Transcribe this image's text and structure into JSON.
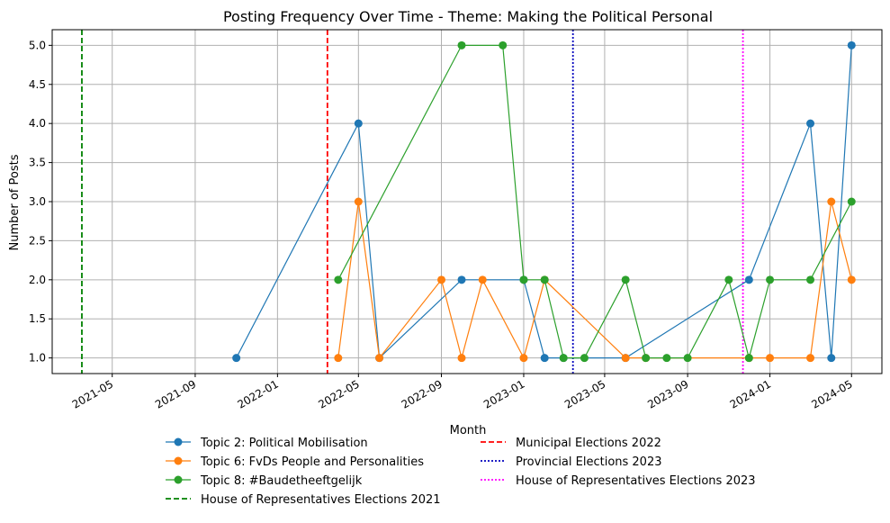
{
  "chart_data": {
    "type": "line",
    "title": "Posting Frequency Over Time - Theme: Making the Political Personal",
    "xlabel": "Month",
    "ylabel": "Number of Posts",
    "xlim": [
      "2021-02-01",
      "2024-06-15"
    ],
    "ylim": [
      0.8,
      5.2
    ],
    "grid": true,
    "legend_position": "bottom-center",
    "xticks": [
      {
        "date": "2021-05-01",
        "label": "2021-05"
      },
      {
        "date": "2021-09-01",
        "label": "2021-09"
      },
      {
        "date": "2022-01-01",
        "label": "2022-01"
      },
      {
        "date": "2022-05-01",
        "label": "2022-05"
      },
      {
        "date": "2022-09-01",
        "label": "2022-09"
      },
      {
        "date": "2023-01-01",
        "label": "2023-01"
      },
      {
        "date": "2023-05-01",
        "label": "2023-05"
      },
      {
        "date": "2023-09-01",
        "label": "2023-09"
      },
      {
        "date": "2024-01-01",
        "label": "2024-01"
      },
      {
        "date": "2024-05-01",
        "label": "2024-05"
      }
    ],
    "yticks": [
      {
        "value": 1.0,
        "label": "1.0"
      },
      {
        "value": 1.5,
        "label": "1.5"
      },
      {
        "value": 2.0,
        "label": "2.0"
      },
      {
        "value": 2.5,
        "label": "2.5"
      },
      {
        "value": 3.0,
        "label": "3.0"
      },
      {
        "value": 3.5,
        "label": "3.5"
      },
      {
        "value": 4.0,
        "label": "4.0"
      },
      {
        "value": 4.5,
        "label": "4.5"
      },
      {
        "value": 5.0,
        "label": "5.0"
      }
    ],
    "series": [
      {
        "name": "Topic 2: Political Mobilisation",
        "color": "#1f77b4",
        "points": [
          {
            "x": "2021-11-01",
            "y": 1
          },
          {
            "x": "2022-05-01",
            "y": 4
          },
          {
            "x": "2022-06-01",
            "y": 1
          },
          {
            "x": "2022-10-01",
            "y": 2
          },
          {
            "x": "2023-01-01",
            "y": 2
          },
          {
            "x": "2023-02-01",
            "y": 1
          },
          {
            "x": "2023-03-01",
            "y": 1
          },
          {
            "x": "2023-06-01",
            "y": 1
          },
          {
            "x": "2023-12-01",
            "y": 2
          },
          {
            "x": "2024-03-01",
            "y": 4
          },
          {
            "x": "2024-04-01",
            "y": 1
          },
          {
            "x": "2024-05-01",
            "y": 5
          }
        ]
      },
      {
        "name": "Topic 6: FvDs People and Personalities",
        "color": "#ff7f0e",
        "points": [
          {
            "x": "2022-04-01",
            "y": 1
          },
          {
            "x": "2022-05-01",
            "y": 3
          },
          {
            "x": "2022-06-01",
            "y": 1
          },
          {
            "x": "2022-09-01",
            "y": 2
          },
          {
            "x": "2022-10-01",
            "y": 1
          },
          {
            "x": "2022-11-01",
            "y": 2
          },
          {
            "x": "2023-01-01",
            "y": 1
          },
          {
            "x": "2023-02-01",
            "y": 2
          },
          {
            "x": "2023-06-01",
            "y": 1
          },
          {
            "x": "2023-07-01",
            "y": 1
          },
          {
            "x": "2023-12-01",
            "y": 1
          },
          {
            "x": "2024-01-01",
            "y": 1
          },
          {
            "x": "2024-03-01",
            "y": 1
          },
          {
            "x": "2024-04-01",
            "y": 3
          },
          {
            "x": "2024-05-01",
            "y": 2
          }
        ]
      },
      {
        "name": "Topic 8: #Baudetheeftgelijk",
        "color": "#2ca02c",
        "points": [
          {
            "x": "2022-04-01",
            "y": 2
          },
          {
            "x": "2022-10-01",
            "y": 5
          },
          {
            "x": "2022-12-01",
            "y": 5
          },
          {
            "x": "2023-01-01",
            "y": 2
          },
          {
            "x": "2023-02-01",
            "y": 2
          },
          {
            "x": "2023-03-01",
            "y": 1
          },
          {
            "x": "2023-04-01",
            "y": 1
          },
          {
            "x": "2023-06-01",
            "y": 2
          },
          {
            "x": "2023-07-01",
            "y": 1
          },
          {
            "x": "2023-08-01",
            "y": 1
          },
          {
            "x": "2023-09-01",
            "y": 1
          },
          {
            "x": "2023-11-01",
            "y": 2
          },
          {
            "x": "2023-12-01",
            "y": 1
          },
          {
            "x": "2024-01-01",
            "y": 2
          },
          {
            "x": "2024-03-01",
            "y": 2
          },
          {
            "x": "2024-05-01",
            "y": 3
          }
        ]
      }
    ],
    "vlines": [
      {
        "name": "House of Representatives Elections 2021",
        "date": "2021-03-17",
        "color": "#008000",
        "style": "dashed"
      },
      {
        "name": "Municipal Elections 2022",
        "date": "2022-03-16",
        "color": "#ff0000",
        "style": "dashed"
      },
      {
        "name": "Provincial Elections 2023",
        "date": "2023-03-15",
        "color": "#0000bf",
        "style": "dotted"
      },
      {
        "name": "House of Representatives Elections 2023",
        "date": "2023-11-22",
        "color": "#ff00ff",
        "style": "dotted"
      }
    ]
  }
}
